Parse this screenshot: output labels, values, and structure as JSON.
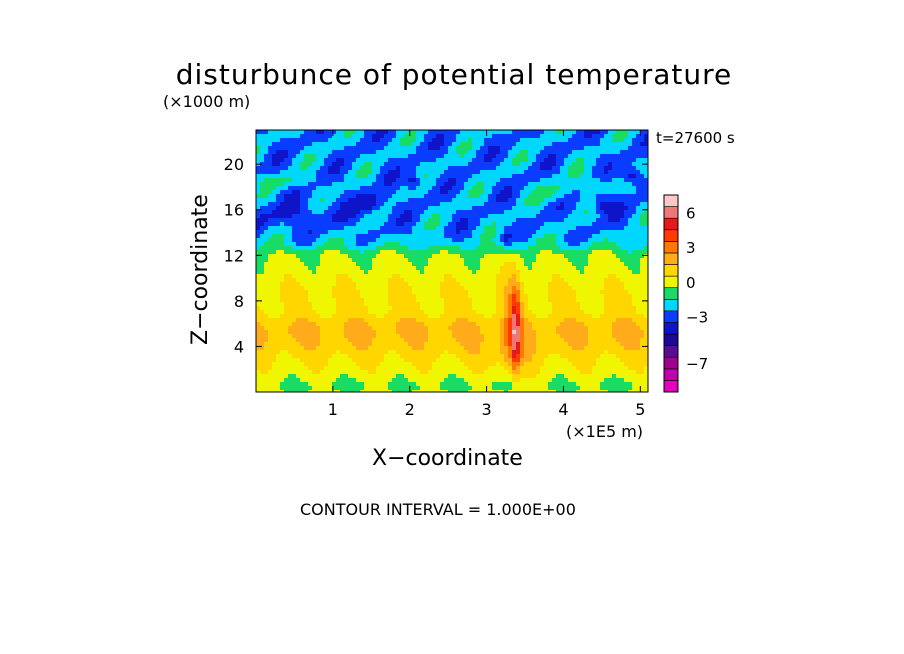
{
  "chart_data": {
    "type": "heatmap",
    "title": "disturbunce of potential temperature",
    "time_label": "t=27600 s",
    "xlabel": "X−coordinate",
    "ylabel": "Z−coordinate",
    "x_scale_label": "(×1E5 m)",
    "y_scale_label": "(×1000 m)",
    "footer": "CONTOUR INTERVAL = 1.000E+00",
    "xlim": [
      0,
      5.1
    ],
    "ylim": [
      0,
      23
    ],
    "x_ticks": [
      1,
      2,
      3,
      4,
      5
    ],
    "y_ticks": [
      4,
      8,
      12,
      16,
      20
    ],
    "colorbar": {
      "levels": [
        -9,
        -8,
        -7,
        -6,
        -5,
        -4,
        -3,
        -2,
        -1,
        0,
        1,
        2,
        3,
        4,
        5,
        6,
        7
      ],
      "colors": [
        "#e600c0",
        "#c000b0",
        "#a0008c",
        "#5a0a9a",
        "#1c0a96",
        "#0f14c8",
        "#0a3cff",
        "#00d7ff",
        "#19dc64",
        "#f0f500",
        "#ffd600",
        "#ffab1a",
        "#ff7800",
        "#ff3a00",
        "#e61a1a",
        "#ee7878",
        "#ffc8c8"
      ],
      "tick_labels": [
        "6",
        "3",
        "0",
        "−3",
        "−7"
      ],
      "tick_values": [
        6,
        3,
        0,
        -3,
        -7
      ]
    }
  }
}
